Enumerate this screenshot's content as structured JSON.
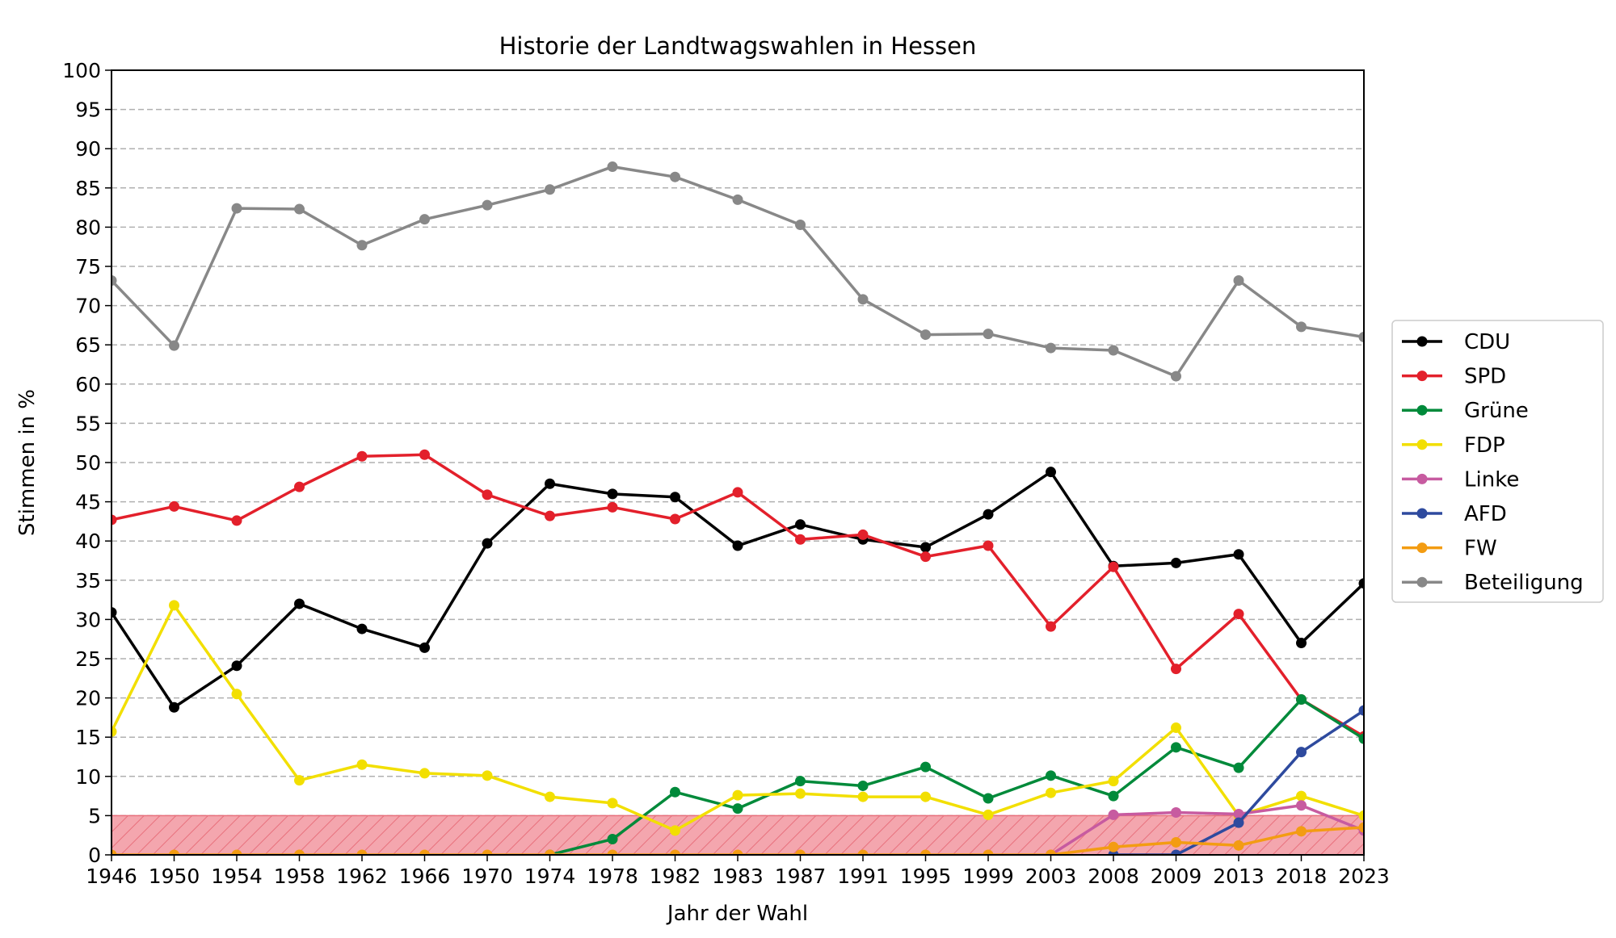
{
  "chart_data": {
    "type": "line",
    "title": "Historie der Landtwagswahlen in Hessen",
    "xlabel": "Jahr der Wahl",
    "ylabel": "Stimmen in %",
    "ylim": [
      0,
      100
    ],
    "yticks": [
      0,
      5,
      10,
      15,
      20,
      25,
      30,
      35,
      40,
      45,
      50,
      55,
      60,
      65,
      70,
      75,
      80,
      85,
      90,
      95,
      100
    ],
    "grid": "horizontal dashed",
    "legend_placement": "right",
    "threshold_band": {
      "from": 0,
      "to": 5,
      "color": "#f4a6ae"
    },
    "categories": [
      "1946",
      "1950",
      "1954",
      "1958",
      "1962",
      "1966",
      "1970",
      "1974",
      "1978",
      "1982",
      "1983",
      "1987",
      "1991",
      "1995",
      "1999",
      "2003",
      "2008",
      "2009",
      "2013",
      "2018",
      "2023"
    ],
    "series": [
      {
        "name": "CDU",
        "color": "#000000",
        "values": [
          30.9,
          18.8,
          24.1,
          32.0,
          28.8,
          26.4,
          39.7,
          47.3,
          46.0,
          45.6,
          39.4,
          42.1,
          40.2,
          39.2,
          43.4,
          48.8,
          36.8,
          37.2,
          38.3,
          27.0,
          34.6
        ]
      },
      {
        "name": "SPD",
        "color": "#e3202b",
        "values": [
          42.7,
          44.4,
          42.6,
          46.9,
          50.8,
          51.0,
          45.9,
          43.2,
          44.3,
          42.8,
          46.2,
          40.2,
          40.8,
          38.0,
          39.4,
          29.1,
          36.7,
          23.7,
          30.7,
          19.8,
          15.1
        ]
      },
      {
        "name": "Grüne",
        "color": "#008a3a",
        "values": [
          null,
          null,
          null,
          null,
          null,
          null,
          null,
          0,
          2.0,
          8.0,
          5.9,
          9.4,
          8.8,
          11.2,
          7.2,
          10.1,
          7.5,
          13.7,
          11.1,
          19.8,
          14.8
        ]
      },
      {
        "name": "FDP",
        "color": "#f2df00",
        "values": [
          15.7,
          31.8,
          20.5,
          9.5,
          11.5,
          10.4,
          10.1,
          7.4,
          6.6,
          3.1,
          7.6,
          7.8,
          7.4,
          7.4,
          5.1,
          7.9,
          9.4,
          16.2,
          5.0,
          7.5,
          5.0
        ]
      },
      {
        "name": "Linke",
        "color": "#c75ba0",
        "values": [
          null,
          null,
          null,
          null,
          null,
          null,
          null,
          null,
          null,
          null,
          null,
          null,
          null,
          null,
          null,
          0,
          5.1,
          5.4,
          5.2,
          6.3,
          3.1
        ]
      },
      {
        "name": "AFD",
        "color": "#2e4a9e",
        "values": [
          null,
          null,
          null,
          null,
          null,
          null,
          null,
          null,
          null,
          null,
          null,
          null,
          null,
          null,
          null,
          null,
          0,
          0,
          4.1,
          13.1,
          18.4
        ]
      },
      {
        "name": "FW",
        "color": "#f39c12",
        "values": [
          0,
          0,
          0,
          0,
          0,
          0,
          0,
          0,
          0,
          0,
          0,
          0,
          0,
          0,
          0,
          0,
          1.0,
          1.6,
          1.2,
          3.0,
          3.5
        ]
      },
      {
        "name": "Beteiligung",
        "color": "#888888",
        "values": [
          73.2,
          64.9,
          82.4,
          82.3,
          77.7,
          81.0,
          82.8,
          84.8,
          87.7,
          86.4,
          83.5,
          80.3,
          70.8,
          66.3,
          66.4,
          64.6,
          64.3,
          61.0,
          73.2,
          67.3,
          66.0
        ]
      }
    ]
  }
}
